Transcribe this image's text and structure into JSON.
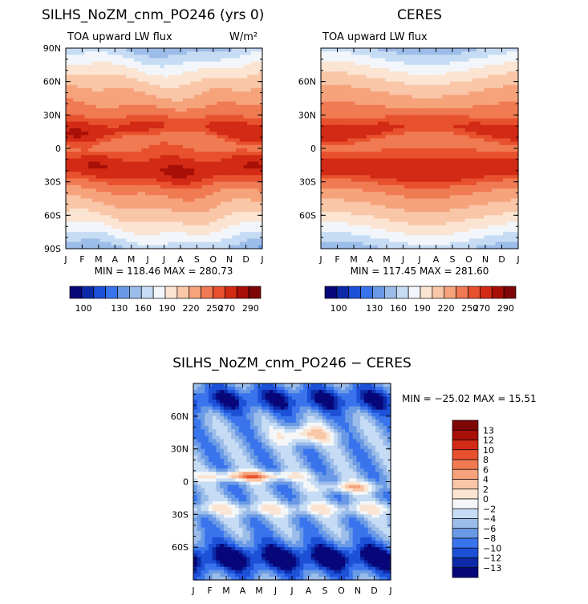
{
  "colors": {
    "abs_scale": [
      "#07077a",
      "#0c2aa8",
      "#1c50d6",
      "#3a74ec",
      "#6a9ae6",
      "#9cbce9",
      "#c6dcf4",
      "#f2f6fa",
      "#fbe4d2",
      "#f9c6a8",
      "#f6a37c",
      "#f07a52",
      "#e8512e",
      "#d22a14",
      "#a80f07",
      "#7e0606"
    ],
    "diff_scale": [
      "#07077a",
      "#0c2aa8",
      "#1c50d6",
      "#3a74ec",
      "#6a9ae6",
      "#9cbce9",
      "#c6dcf4",
      "#f4f6f8",
      "#fbe4d2",
      "#f9c6a8",
      "#f6a37c",
      "#f07a52",
      "#e8512e",
      "#d22a14",
      "#a80f07",
      "#7e0606"
    ]
  },
  "chart_data": [
    {
      "type": "heatmap",
      "title": "SILHS_NoZM_cnm_PO246 (yrs 0)",
      "subtitle": "TOA upward LW flux",
      "units": "W/m²",
      "x_ticks": [
        "J",
        "F",
        "M",
        "A",
        "M",
        "J",
        "J",
        "A",
        "S",
        "O",
        "N",
        "D",
        "J"
      ],
      "y_ticks": [
        "90N",
        "60N",
        "30N",
        "0",
        "30S",
        "60S",
        "90S"
      ],
      "ylim": [
        -90,
        90
      ],
      "stats": "MIN = 118.46  MAX = 280.73",
      "colorbar_labels": [
        "100",
        "130",
        "160",
        "190",
        "220",
        "250",
        "270",
        "290"
      ],
      "levels": [
        90,
        100,
        110,
        120,
        130,
        145,
        160,
        175,
        190,
        205,
        220,
        235,
        250,
        260,
        270,
        280,
        290
      ],
      "variant": 0
    },
    {
      "type": "heatmap",
      "title": "CERES",
      "subtitle": "TOA upward LW flux",
      "x_ticks": [
        "J",
        "F",
        "M",
        "A",
        "M",
        "J",
        "J",
        "A",
        "S",
        "O",
        "N",
        "D",
        "J"
      ],
      "y_ticks": [
        "60N",
        "30N",
        "0",
        "30S",
        "60S"
      ],
      "ylim": [
        -90,
        90
      ],
      "stats": "MIN = 117.45  MAX = 281.60",
      "colorbar_labels": [
        "100",
        "130",
        "160",
        "190",
        "220",
        "250",
        "270",
        "290"
      ],
      "levels": [
        90,
        100,
        110,
        120,
        130,
        145,
        160,
        175,
        190,
        205,
        220,
        235,
        250,
        260,
        270,
        280,
        290
      ],
      "variant": 1
    },
    {
      "type": "heatmap",
      "title": "SILHS_NoZM_cnm_PO246 − CERES",
      "x_ticks": [
        "J",
        "F",
        "M",
        "A",
        "M",
        "J",
        "J",
        "A",
        "S",
        "O",
        "N",
        "D",
        "J"
      ],
      "y_ticks": [
        "60N",
        "30N",
        "0",
        "30S",
        "60S"
      ],
      "ylim": [
        -90,
        90
      ],
      "stats": "MIN = −25.02  MAX =  15.51",
      "colorbar_labels": [
        "13",
        "12",
        "10",
        "8",
        "6",
        "4",
        "2",
        "0",
        "−2",
        "−4",
        "−6",
        "−8",
        "−10",
        "−12",
        "−13"
      ],
      "levels": [
        -14,
        -13,
        -12,
        -10,
        -8,
        -6,
        -4,
        -2,
        0,
        2,
        4,
        6,
        8,
        10,
        12,
        13,
        14
      ]
    }
  ]
}
